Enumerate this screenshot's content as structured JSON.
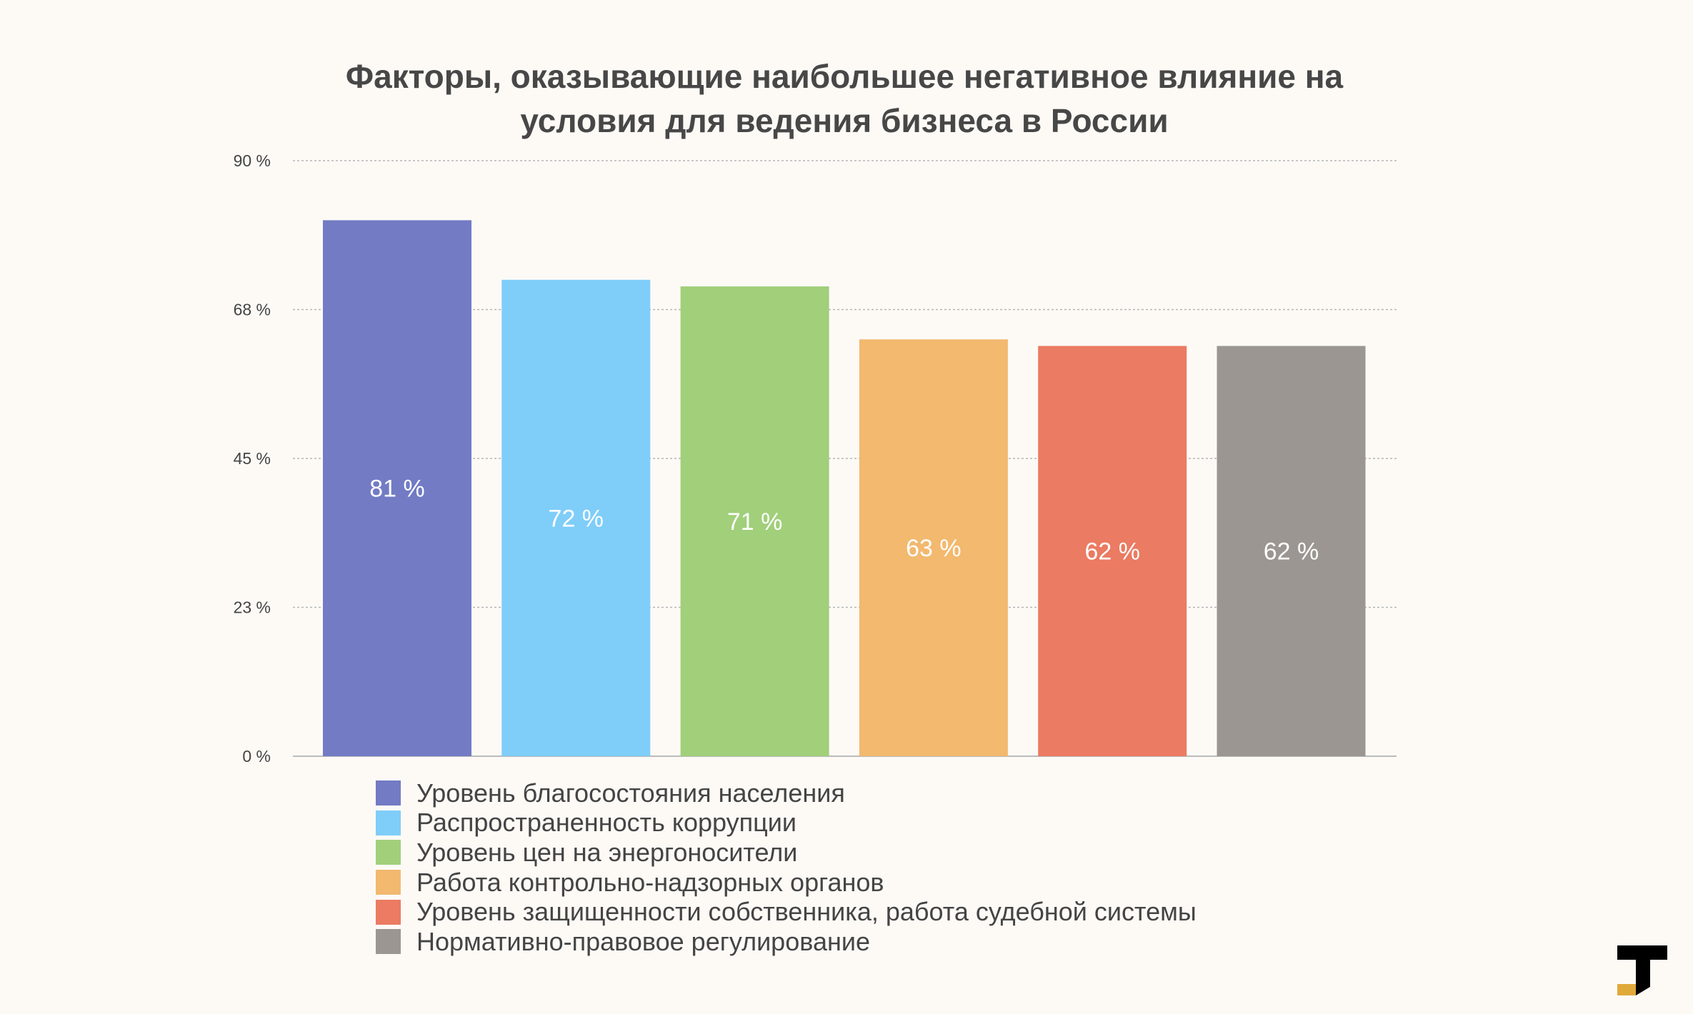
{
  "chart_data": {
    "type": "bar",
    "title": "Факторы, оказывающие наибольшее негативное влияние на условия для ведения бизнеса в России",
    "title_lines": [
      "Факторы, оказывающие наибольшее негативное влияние на",
      "условия для ведения бизнеса в России"
    ],
    "categories": [
      "Уровень благосостояния населения",
      "Распространенность коррупции",
      "Уровень цен на энергоносители",
      "Работа контрольно-надзорных органов",
      "Уровень защищенности собственника, работа судебной системы",
      "Нормативно-правовое регулирование"
    ],
    "values": [
      81,
      72,
      71,
      63,
      62,
      62
    ],
    "value_labels": [
      "81 %",
      "72 %",
      "71 %",
      "63 %",
      "62 %",
      "62 %"
    ],
    "colors": [
      "#727bc4",
      "#7fcdf9",
      "#a1cf7a",
      "#f2b96f",
      "#eb7b62",
      "#9b9691"
    ],
    "y_ticks": [
      0,
      22.5,
      45,
      67.5,
      90
    ],
    "y_tick_labels": [
      "0 %",
      "23 %",
      "45 %",
      "68 %",
      "90 %"
    ],
    "ylim": [
      0,
      90
    ],
    "grid": true,
    "legend_position": "bottom-left",
    "xlabel": "",
    "ylabel": ""
  }
}
